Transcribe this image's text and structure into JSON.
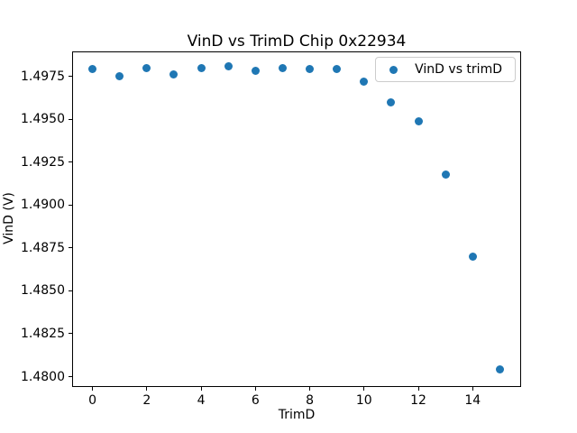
{
  "chart_data": {
    "type": "scatter",
    "title": "VinD vs TrimD Chip 0x22934",
    "xlabel": "TrimD",
    "ylabel": "VinD (V)",
    "legend": {
      "label": "VinD vs trimD",
      "position": "upper right"
    },
    "x": [
      0,
      1,
      2,
      3,
      4,
      5,
      6,
      7,
      8,
      9,
      10,
      11,
      12,
      13,
      14,
      15
    ],
    "y": [
      1.4979,
      1.4975,
      1.498,
      1.4976,
      1.498,
      1.4981,
      1.4978,
      1.498,
      1.4979,
      1.4979,
      1.4972,
      1.496,
      1.4949,
      1.4918,
      1.487,
      1.4804
    ],
    "xlim": [
      -0.75,
      15.75
    ],
    "ylim": [
      1.47945,
      1.49895
    ],
    "xticks": [
      0,
      2,
      4,
      6,
      8,
      10,
      12,
      14
    ],
    "yticks": [
      1.4975,
      1.495,
      1.4925,
      1.49,
      1.4875,
      1.485,
      1.4825,
      1.48
    ],
    "ytick_labels": [
      "1.4975",
      "1.4950",
      "1.4925",
      "1.4900",
      "1.4875",
      "1.4850",
      "1.4825",
      "1.4800"
    ],
    "marker_color": "#1f77b4",
    "grid": false
  }
}
